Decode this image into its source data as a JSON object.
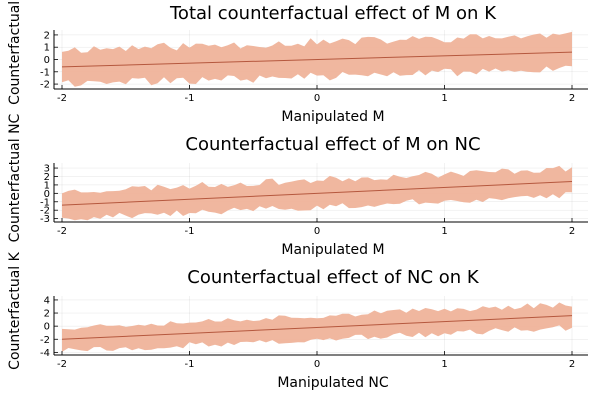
{
  "colors": {
    "band": "#efb39a",
    "line": "#b5583e"
  },
  "chart_data": [
    {
      "type": "area",
      "title": "Total counterfactual effect of M on K",
      "xlabel": "Manipulated M",
      "ylabel": "Counterfactual K",
      "xlim": [
        -2,
        2
      ],
      "ylim": [
        -2.4,
        2.4
      ],
      "xticks": [
        -2,
        -1,
        0,
        1,
        2
      ],
      "xtick_labels": [
        "-2",
        "-1",
        "0",
        "1",
        "2"
      ],
      "yticks": [
        -2,
        -1,
        0,
        1,
        2
      ],
      "ytick_labels": [
        "-2",
        "-1",
        "0",
        "1",
        "2"
      ],
      "mean_line": {
        "x": [
          -2,
          2
        ],
        "y": [
          -0.6,
          0.6
        ]
      },
      "band_halfwidth": 1.4,
      "band_noise": 0.35,
      "seed": 11
    },
    {
      "type": "area",
      "title": "Counterfactual effect of M on NC",
      "xlabel": "Manipulated M",
      "ylabel": "Counterfactual NC",
      "xlim": [
        -2,
        2
      ],
      "ylim": [
        -3.4,
        3.6
      ],
      "xticks": [
        -2,
        -1,
        0,
        1,
        2
      ],
      "xtick_labels": [
        "-2",
        "-1",
        "0",
        "1",
        "2"
      ],
      "yticks": [
        -3,
        -2,
        -1,
        0,
        1,
        2,
        3
      ],
      "ytick_labels": [
        "-3",
        "-2",
        "-1",
        "0",
        "1",
        "2",
        "3"
      ],
      "mean_line": {
        "x": [
          -2,
          2
        ],
        "y": [
          -1.4,
          1.4
        ]
      },
      "band_halfwidth": 1.6,
      "band_noise": 0.4,
      "seed": 23
    },
    {
      "type": "area",
      "title": "Counterfactual effect of NC on K",
      "xlabel": "Manipulated NC",
      "ylabel": "Counterfactual K",
      "xlim": [
        -2,
        2
      ],
      "ylim": [
        -4.4,
        4.6
      ],
      "xticks": [
        -2,
        -1,
        0,
        1,
        2
      ],
      "xtick_labels": [
        "-2",
        "-1",
        "0",
        "1",
        "2"
      ],
      "yticks": [
        -4,
        -2,
        0,
        2,
        4
      ],
      "ytick_labels": [
        "-4",
        "-2",
        "0",
        "2",
        "4"
      ],
      "mean_line": {
        "x": [
          -2,
          2
        ],
        "y": [
          -2.0,
          1.6
        ]
      },
      "band_halfwidth": 1.8,
      "band_noise": 0.45,
      "seed": 37
    }
  ]
}
